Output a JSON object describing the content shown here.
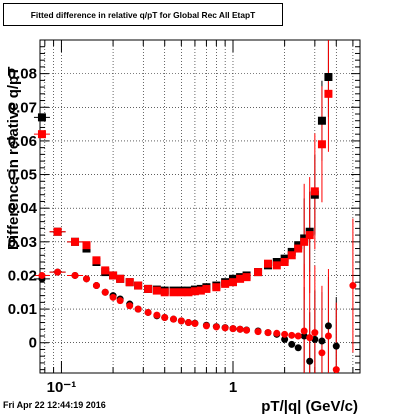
{
  "chart_data": {
    "type": "scatter",
    "title": "Fitted difference in relative q/pT for Global Rec All EtapT",
    "xlabel": "pT/|q| (GeV/c)",
    "ylabel": "Difference in relative q/pT",
    "xscale": "log",
    "xlim": [
      0.075,
      5.5
    ],
    "ylim": [
      -0.009,
      0.09
    ],
    "x_ticks": [
      {
        "value": 0.1,
        "label": "10⁻¹"
      },
      {
        "value": 1,
        "label": "1"
      }
    ],
    "y_ticks": [
      {
        "value": 0,
        "label": "0"
      },
      {
        "value": 0.01,
        "label": "0.01"
      },
      {
        "value": 0.02,
        "label": "0.02"
      },
      {
        "value": 0.03,
        "label": "0.03"
      },
      {
        "value": 0.04,
        "label": "0.04"
      },
      {
        "value": 0.05,
        "label": "0.05"
      },
      {
        "value": 0.06,
        "label": "0.06"
      },
      {
        "value": 0.07,
        "label": "0.07"
      },
      {
        "value": 0.08,
        "label": "0.08"
      }
    ],
    "grid": true,
    "timestamp": "Fri Apr 22 12:44:19 2016",
    "series": [
      {
        "marker": "square",
        "color": "#000000",
        "points": [
          {
            "x": 0.077,
            "y": 0.067
          },
          {
            "x": 0.095,
            "y": 0.033
          },
          {
            "x": 0.12,
            "y": 0.03
          },
          {
            "x": 0.14,
            "y": 0.028
          },
          {
            "x": 0.16,
            "y": 0.024
          },
          {
            "x": 0.18,
            "y": 0.021
          },
          {
            "x": 0.2,
            "y": 0.02
          },
          {
            "x": 0.22,
            "y": 0.019
          },
          {
            "x": 0.25,
            "y": 0.018
          },
          {
            "x": 0.28,
            "y": 0.017
          },
          {
            "x": 0.32,
            "y": 0.016
          },
          {
            "x": 0.36,
            "y": 0.0158
          },
          {
            "x": 0.4,
            "y": 0.0155
          },
          {
            "x": 0.45,
            "y": 0.0155
          },
          {
            "x": 0.5,
            "y": 0.0155
          },
          {
            "x": 0.55,
            "y": 0.0155
          },
          {
            "x": 0.6,
            "y": 0.0158
          },
          {
            "x": 0.65,
            "y": 0.016
          },
          {
            "x": 0.7,
            "y": 0.0165
          },
          {
            "x": 0.8,
            "y": 0.017
          },
          {
            "x": 0.9,
            "y": 0.018
          },
          {
            "x": 1.0,
            "y": 0.019
          },
          {
            "x": 1.1,
            "y": 0.0195
          },
          {
            "x": 1.2,
            "y": 0.02
          },
          {
            "x": 1.4,
            "y": 0.021
          },
          {
            "x": 1.6,
            "y": 0.023
          },
          {
            "x": 1.8,
            "y": 0.024
          },
          {
            "x": 2.0,
            "y": 0.025
          },
          {
            "x": 2.2,
            "y": 0.027
          },
          {
            "x": 2.4,
            "y": 0.029
          },
          {
            "x": 2.6,
            "y": 0.031
          },
          {
            "x": 2.8,
            "y": 0.033
          },
          {
            "x": 3.0,
            "y": 0.044
          },
          {
            "x": 3.3,
            "y": 0.066
          },
          {
            "x": 3.6,
            "y": 0.079
          }
        ]
      },
      {
        "marker": "circle",
        "color": "#000000",
        "points": [
          {
            "x": 0.077,
            "y": 0.019
          },
          {
            "x": 0.095,
            "y": 0.021
          },
          {
            "x": 0.12,
            "y": 0.02
          },
          {
            "x": 0.14,
            "y": 0.019
          },
          {
            "x": 0.16,
            "y": 0.017
          },
          {
            "x": 0.18,
            "y": 0.015
          },
          {
            "x": 0.2,
            "y": 0.014
          },
          {
            "x": 0.22,
            "y": 0.013
          },
          {
            "x": 0.25,
            "y": 0.0115
          },
          {
            "x": 0.28,
            "y": 0.01
          },
          {
            "x": 0.32,
            "y": 0.009
          },
          {
            "x": 0.36,
            "y": 0.008
          },
          {
            "x": 0.4,
            "y": 0.0075
          },
          {
            "x": 0.45,
            "y": 0.007
          },
          {
            "x": 0.5,
            "y": 0.0065
          },
          {
            "x": 0.55,
            "y": 0.006
          },
          {
            "x": 0.6,
            "y": 0.0058
          },
          {
            "x": 0.7,
            "y": 0.0052
          },
          {
            "x": 0.8,
            "y": 0.0048
          },
          {
            "x": 0.9,
            "y": 0.0045
          },
          {
            "x": 1.0,
            "y": 0.0042
          },
          {
            "x": 1.1,
            "y": 0.004
          },
          {
            "x": 1.2,
            "y": 0.0038
          },
          {
            "x": 1.4,
            "y": 0.0035
          },
          {
            "x": 1.6,
            "y": 0.003
          },
          {
            "x": 1.8,
            "y": 0.0025
          },
          {
            "x": 2.0,
            "y": 0.001
          },
          {
            "x": 2.2,
            "y": -0.0005
          },
          {
            "x": 2.4,
            "y": -0.0015
          },
          {
            "x": 2.6,
            "y": 0.002
          },
          {
            "x": 2.8,
            "y": -0.0055
          },
          {
            "x": 3.0,
            "y": 0.001
          },
          {
            "x": 3.3,
            "y": 0.0005
          },
          {
            "x": 3.6,
            "y": 0.005
          },
          {
            "x": 4.0,
            "y": -0.001
          }
        ]
      },
      {
        "marker": "square",
        "color": "#ff0000",
        "points": [
          {
            "x": 0.077,
            "y": 0.062
          },
          {
            "x": 0.095,
            "y": 0.033
          },
          {
            "x": 0.12,
            "y": 0.03
          },
          {
            "x": 0.14,
            "y": 0.029
          },
          {
            "x": 0.16,
            "y": 0.0245
          },
          {
            "x": 0.18,
            "y": 0.0215
          },
          {
            "x": 0.2,
            "y": 0.02
          },
          {
            "x": 0.22,
            "y": 0.019
          },
          {
            "x": 0.25,
            "y": 0.018
          },
          {
            "x": 0.28,
            "y": 0.017
          },
          {
            "x": 0.32,
            "y": 0.016
          },
          {
            "x": 0.36,
            "y": 0.0155
          },
          {
            "x": 0.4,
            "y": 0.015
          },
          {
            "x": 0.45,
            "y": 0.015
          },
          {
            "x": 0.5,
            "y": 0.015
          },
          {
            "x": 0.55,
            "y": 0.015
          },
          {
            "x": 0.6,
            "y": 0.0153
          },
          {
            "x": 0.65,
            "y": 0.0155
          },
          {
            "x": 0.7,
            "y": 0.016
          },
          {
            "x": 0.8,
            "y": 0.0165
          },
          {
            "x": 0.9,
            "y": 0.0175
          },
          {
            "x": 1.0,
            "y": 0.018
          },
          {
            "x": 1.1,
            "y": 0.019
          },
          {
            "x": 1.2,
            "y": 0.0195
          },
          {
            "x": 1.4,
            "y": 0.021
          },
          {
            "x": 1.6,
            "y": 0.0235
          },
          {
            "x": 1.8,
            "y": 0.023
          },
          {
            "x": 2.0,
            "y": 0.024
          },
          {
            "x": 2.2,
            "y": 0.026
          },
          {
            "x": 2.4,
            "y": 0.028
          },
          {
            "x": 2.6,
            "y": 0.03
          },
          {
            "x": 2.8,
            "y": 0.032
          },
          {
            "x": 3.0,
            "y": 0.045
          },
          {
            "x": 3.3,
            "y": 0.059
          },
          {
            "x": 3.6,
            "y": 0.074
          }
        ]
      },
      {
        "marker": "circle",
        "color": "#ff0000",
        "points": [
          {
            "x": 0.077,
            "y": 0.02
          },
          {
            "x": 0.095,
            "y": 0.021
          },
          {
            "x": 0.12,
            "y": 0.02
          },
          {
            "x": 0.14,
            "y": 0.019
          },
          {
            "x": 0.16,
            "y": 0.017
          },
          {
            "x": 0.18,
            "y": 0.015
          },
          {
            "x": 0.2,
            "y": 0.0135
          },
          {
            "x": 0.22,
            "y": 0.0125
          },
          {
            "x": 0.25,
            "y": 0.011
          },
          {
            "x": 0.28,
            "y": 0.01
          },
          {
            "x": 0.32,
            "y": 0.009
          },
          {
            "x": 0.36,
            "y": 0.0082
          },
          {
            "x": 0.4,
            "y": 0.0075
          },
          {
            "x": 0.45,
            "y": 0.007
          },
          {
            "x": 0.5,
            "y": 0.0065
          },
          {
            "x": 0.55,
            "y": 0.006
          },
          {
            "x": 0.6,
            "y": 0.0057
          },
          {
            "x": 0.7,
            "y": 0.005
          },
          {
            "x": 0.8,
            "y": 0.0047
          },
          {
            "x": 0.9,
            "y": 0.0044
          },
          {
            "x": 1.0,
            "y": 0.0042
          },
          {
            "x": 1.1,
            "y": 0.004
          },
          {
            "x": 1.2,
            "y": 0.0037
          },
          {
            "x": 1.4,
            "y": 0.0033
          },
          {
            "x": 1.6,
            "y": 0.003
          },
          {
            "x": 1.8,
            "y": 0.0028
          },
          {
            "x": 2.0,
            "y": 0.0025
          },
          {
            "x": 2.2,
            "y": 0.0022
          },
          {
            "x": 2.4,
            "y": 0.002
          },
          {
            "x": 2.6,
            "y": 0.0035
          },
          {
            "x": 2.8,
            "y": 0.0015
          },
          {
            "x": 3.0,
            "y": 0.003
          },
          {
            "x": 3.3,
            "y": -0.003
          },
          {
            "x": 3.6,
            "y": 0.002
          },
          {
            "x": 4.0,
            "y": -0.008
          },
          {
            "x": 5.0,
            "y": 0.017
          }
        ]
      }
    ]
  }
}
